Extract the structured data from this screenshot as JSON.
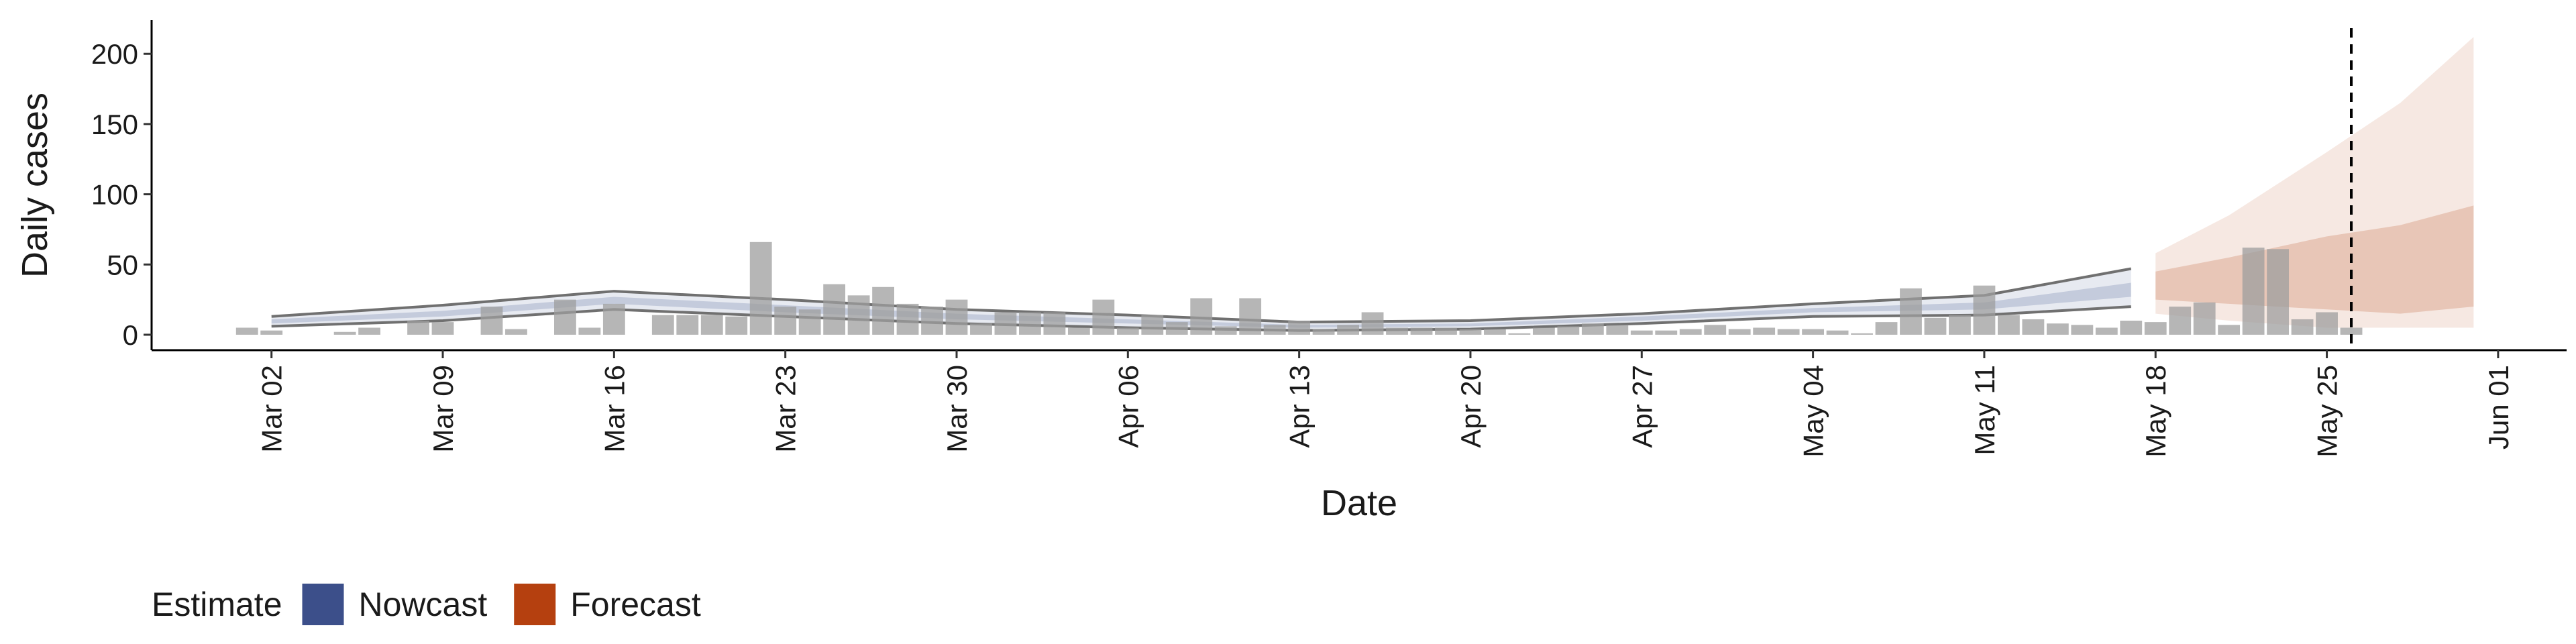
{
  "chart_data": {
    "type": "bar",
    "xlabel": "Date",
    "ylabel": "Daily cases",
    "x": [
      "Mar 01",
      "Mar 02",
      "Mar 03",
      "Mar 04",
      "Mar 05",
      "Mar 06",
      "Mar 07",
      "Mar 08",
      "Mar 09",
      "Mar 10",
      "Mar 11",
      "Mar 12",
      "Mar 13",
      "Mar 14",
      "Mar 15",
      "Mar 16",
      "Mar 17",
      "Mar 18",
      "Mar 19",
      "Mar 20",
      "Mar 21",
      "Mar 22",
      "Mar 23",
      "Mar 24",
      "Mar 25",
      "Mar 26",
      "Mar 27",
      "Mar 28",
      "Mar 29",
      "Mar 30",
      "Mar 31",
      "Apr 01",
      "Apr 02",
      "Apr 03",
      "Apr 04",
      "Apr 05",
      "Apr 06",
      "Apr 07",
      "Apr 08",
      "Apr 09",
      "Apr 10",
      "Apr 11",
      "Apr 12",
      "Apr 13",
      "Apr 14",
      "Apr 15",
      "Apr 16",
      "Apr 17",
      "Apr 18",
      "Apr 19",
      "Apr 20",
      "Apr 21",
      "Apr 22",
      "Apr 23",
      "Apr 24",
      "Apr 25",
      "Apr 26",
      "Apr 27",
      "Apr 28",
      "Apr 29",
      "Apr 30",
      "May 01",
      "May 02",
      "May 03",
      "May 04",
      "May 05",
      "May 06",
      "May 07",
      "May 08",
      "May 09",
      "May 10",
      "May 11",
      "May 12",
      "May 13",
      "May 14",
      "May 15",
      "May 16",
      "May 17",
      "May 18",
      "May 19",
      "May 20",
      "May 21",
      "May 22",
      "May 23",
      "May 24",
      "May 25",
      "May 26",
      "May 27",
      "May 28",
      "May 29",
      "May 30",
      "May 31",
      "Jun 01"
    ],
    "values": [
      5,
      3,
      0,
      0,
      2,
      5,
      0,
      10,
      9,
      0,
      20,
      4,
      0,
      25,
      5,
      22,
      0,
      14,
      14,
      14,
      13,
      66,
      20,
      18,
      36,
      28,
      34,
      22,
      20,
      25,
      8,
      16,
      16,
      16,
      5,
      25,
      5,
      14,
      9,
      26,
      6,
      26,
      7,
      10,
      4,
      7,
      16,
      5,
      5,
      5,
      4,
      4,
      1,
      5,
      6,
      8,
      7,
      3,
      3,
      4,
      7,
      4,
      5,
      4,
      4,
      3,
      1,
      9,
      33,
      12,
      14,
      35,
      14,
      11,
      8,
      7,
      5,
      10,
      9,
      20,
      23,
      7,
      62,
      61,
      11,
      16,
      5,
      null,
      null,
      null,
      null,
      null,
      null
    ],
    "color": "#9e9e9e",
    "ylim": [
      -11,
      224
    ],
    "yticks": [
      0,
      50,
      100,
      150,
      200
    ],
    "xticks": [
      "Mar 02",
      "Mar 09",
      "Mar 16",
      "Mar 23",
      "Mar 30",
      "Apr 06",
      "Apr 13",
      "Apr 20",
      "Apr 27",
      "May 04",
      "May 11",
      "May 18",
      "May 25",
      "Jun 01"
    ],
    "vline": "May 26",
    "ribbons": [
      {
        "name": "Nowcast",
        "color": "#3c4f8a",
        "outline": "#707070",
        "x": [
          "Mar 02",
          "Mar 09",
          "Mar 16",
          "Mar 23",
          "Mar 30",
          "Apr 06",
          "Apr 13",
          "Apr 20",
          "Apr 27",
          "May 04",
          "May 11",
          "May 17"
        ],
        "outer_lower": [
          6,
          10,
          18,
          13,
          8,
          5,
          3,
          4,
          8,
          13,
          14,
          20
        ],
        "outer_upper": [
          13,
          21,
          31,
          25,
          18,
          14,
          9,
          10,
          15,
          22,
          28,
          47
        ],
        "inner_lower": [
          8,
          13,
          22,
          16,
          11,
          8,
          5,
          6,
          10,
          16,
          18,
          27
        ],
        "inner_upper": [
          11,
          17,
          27,
          21,
          15,
          11,
          7,
          8,
          13,
          19,
          23,
          37
        ]
      },
      {
        "name": "Forecast",
        "color": "#b5400f",
        "x": [
          "May 18",
          "May 21",
          "May 25",
          "May 28",
          "May 31"
        ],
        "outer_lower": [
          15,
          10,
          5,
          5,
          5
        ],
        "outer_upper": [
          58,
          85,
          130,
          165,
          212
        ],
        "inner_lower": [
          25,
          22,
          18,
          15,
          20
        ],
        "inner_upper": [
          45,
          55,
          70,
          78,
          92
        ]
      }
    ],
    "legend_title": "Estimate",
    "legend_position": "bottom-left"
  }
}
